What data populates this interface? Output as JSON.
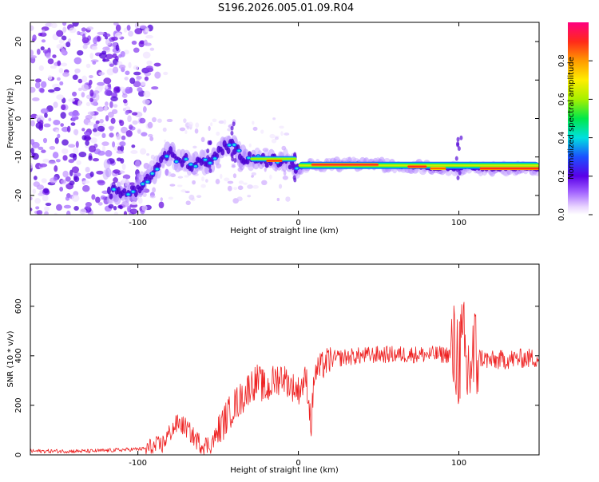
{
  "title": "S196.2026.005.01.09.R04",
  "chart_data": [
    {
      "type": "heatmap",
      "title": "S196.2026.005.01.09.R04",
      "xlabel": "Height of straight line (km)",
      "ylabel": "Frequency (Hz)",
      "xlim": [
        -167,
        150
      ],
      "ylim": [
        -25,
        25
      ],
      "xticks": [
        -100,
        0,
        100
      ],
      "yticks": [
        -20,
        -10,
        0,
        10,
        20
      ],
      "ridge": {
        "x": [
          -118,
          -108,
          -100,
          -95,
          -90,
          -85,
          -80,
          -75,
          -70,
          -65,
          -60,
          -55,
          -50,
          -45,
          -40,
          -35,
          -30,
          -25,
          -20,
          -15,
          -10,
          -5,
          0,
          5,
          10,
          20,
          30,
          40,
          50,
          60,
          70,
          80,
          85,
          90,
          95,
          100,
          105,
          110,
          120,
          130,
          140,
          150
        ],
        "y": [
          -19,
          -19.5,
          -18,
          -16.5,
          -14,
          -10.5,
          -9,
          -11,
          -11,
          -12.5,
          -11,
          -12,
          -9,
          -7,
          -7.5,
          -10,
          -10,
          -10.3,
          -11,
          -11,
          -11,
          -11.5,
          -13,
          -12,
          -12,
          -12,
          -12,
          -12,
          -12,
          -12.3,
          -12.5,
          -12.8,
          -13,
          -13,
          -13,
          -13,
          -12.5,
          -13,
          -13,
          -13,
          -13,
          -13
        ]
      },
      "colorbar": {
        "label": "Normalized spectral amplitude",
        "range": [
          0,
          1
        ],
        "ticks": [
          "0.0",
          "0.2",
          "0.4",
          "0.6",
          "0.8"
        ]
      }
    },
    {
      "type": "line",
      "xlabel": "Height of straight line (km)",
      "ylabel": "SNR (10 * v/v)",
      "xlim": [
        -167,
        150
      ],
      "ylim": [
        0,
        770
      ],
      "xticks": [
        -100,
        0,
        100
      ],
      "yticks": [
        0,
        200,
        400,
        600
      ],
      "color": "#ee2222",
      "series": [
        {
          "name": "SNR",
          "x": [
            -167,
            -150,
            -130,
            -110,
            -95,
            -85,
            -80,
            -75,
            -70,
            -65,
            -60,
            -55,
            -50,
            -45,
            -40,
            -35,
            -30,
            -25,
            -20,
            -15,
            -10,
            -5,
            0,
            5,
            8,
            10,
            12,
            15,
            20,
            30,
            40,
            50,
            60,
            70,
            80,
            90,
            95,
            100,
            103,
            105,
            107,
            110,
            115,
            120,
            130,
            140,
            150
          ],
          "values": [
            15,
            15,
            15,
            20,
            25,
            40,
            90,
            130,
            110,
            70,
            40,
            40,
            90,
            150,
            200,
            230,
            280,
            300,
            260,
            300,
            320,
            280,
            260,
            310,
            120,
            330,
            340,
            360,
            385,
            395,
            400,
            405,
            405,
            405,
            405,
            405,
            405,
            400,
            420,
            320,
            360,
            400,
            390,
            380,
            385,
            390,
            390
          ]
        }
      ]
    }
  ]
}
